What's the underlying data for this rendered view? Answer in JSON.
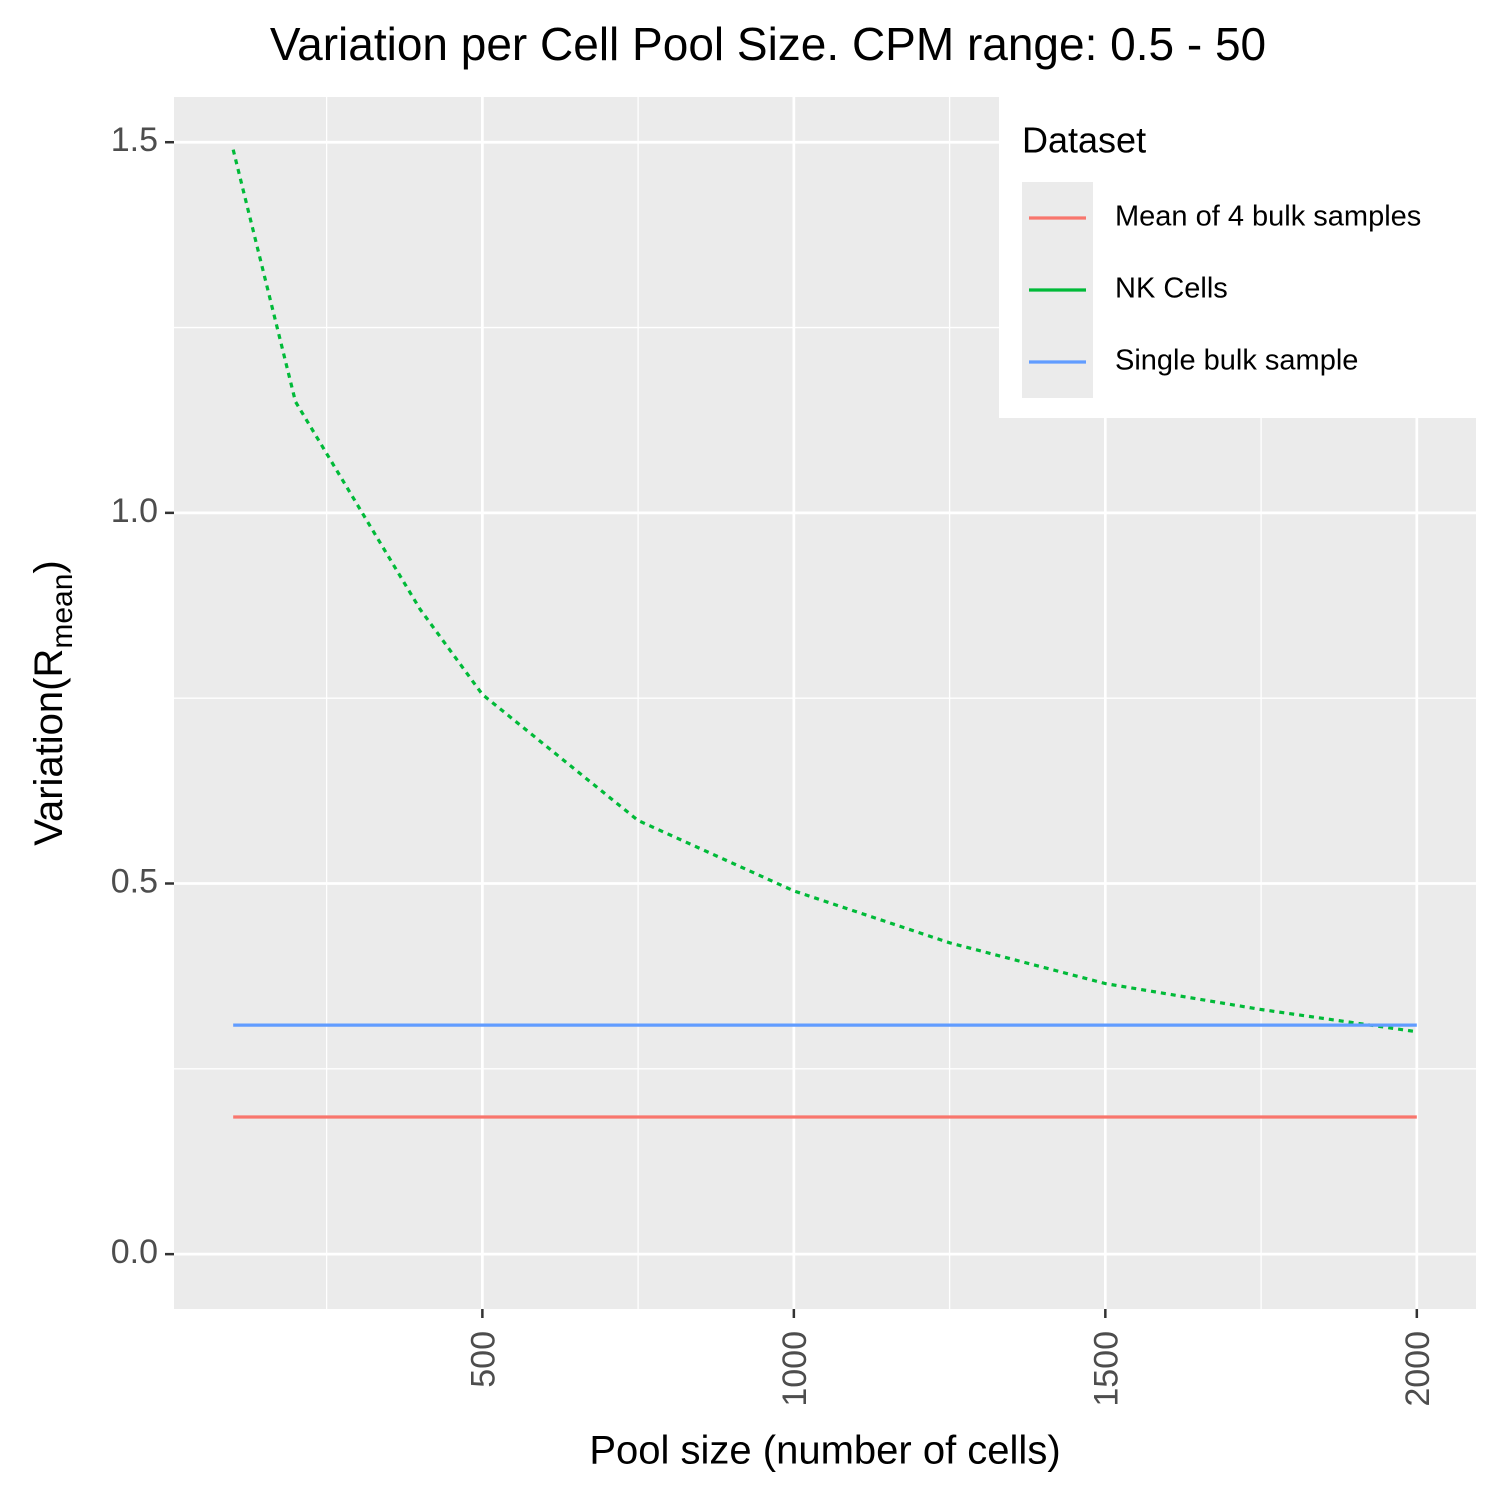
{
  "chart_data": {
    "type": "line",
    "title": "Variation per Cell Pool Size. CPM range: 0.5 - 50",
    "x_label": "Pool size (number of cells)",
    "y_label_parts": [
      "Variation(",
      "R",
      "mean",
      ")"
    ],
    "legend_title": "Dataset",
    "legend_position": "top-right",
    "xlim": [
      5,
      2095
    ],
    "ylim": [
      -0.074,
      1.561
    ],
    "xticks": [
      500,
      1000,
      1500,
      2000
    ],
    "yticks": [
      {
        "value": 0,
        "label": "0.0"
      },
      0.5,
      {
        "value": 1,
        "label": "1.0"
      },
      1.5
    ],
    "xminor": [
      250,
      750,
      1250,
      1750
    ],
    "yminor": [
      0.25,
      0.75,
      1.25
    ],
    "grid": true,
    "series": [
      {
        "name": "Mean of 4 bulk samples",
        "color": "#f8766d",
        "linestyle": "solid",
        "x": [
          100,
          2000
        ],
        "values": [
          0.185,
          0.185
        ]
      },
      {
        "name": "NK Cells",
        "color": "#00ba38",
        "linestyle": "dotted",
        "x": [
          100,
          200,
          300,
          400,
          500,
          750,
          1000,
          1250,
          1500,
          1750,
          2000
        ],
        "values": [
          1.49,
          1.15,
          1.01,
          0.87,
          0.755,
          0.585,
          0.49,
          0.42,
          0.365,
          0.33,
          0.3
        ]
      },
      {
        "name": "Single bulk sample",
        "color": "#619cff",
        "linestyle": "solid",
        "x": [
          100,
          2000
        ],
        "values": [
          0.309,
          0.309
        ]
      }
    ]
  }
}
